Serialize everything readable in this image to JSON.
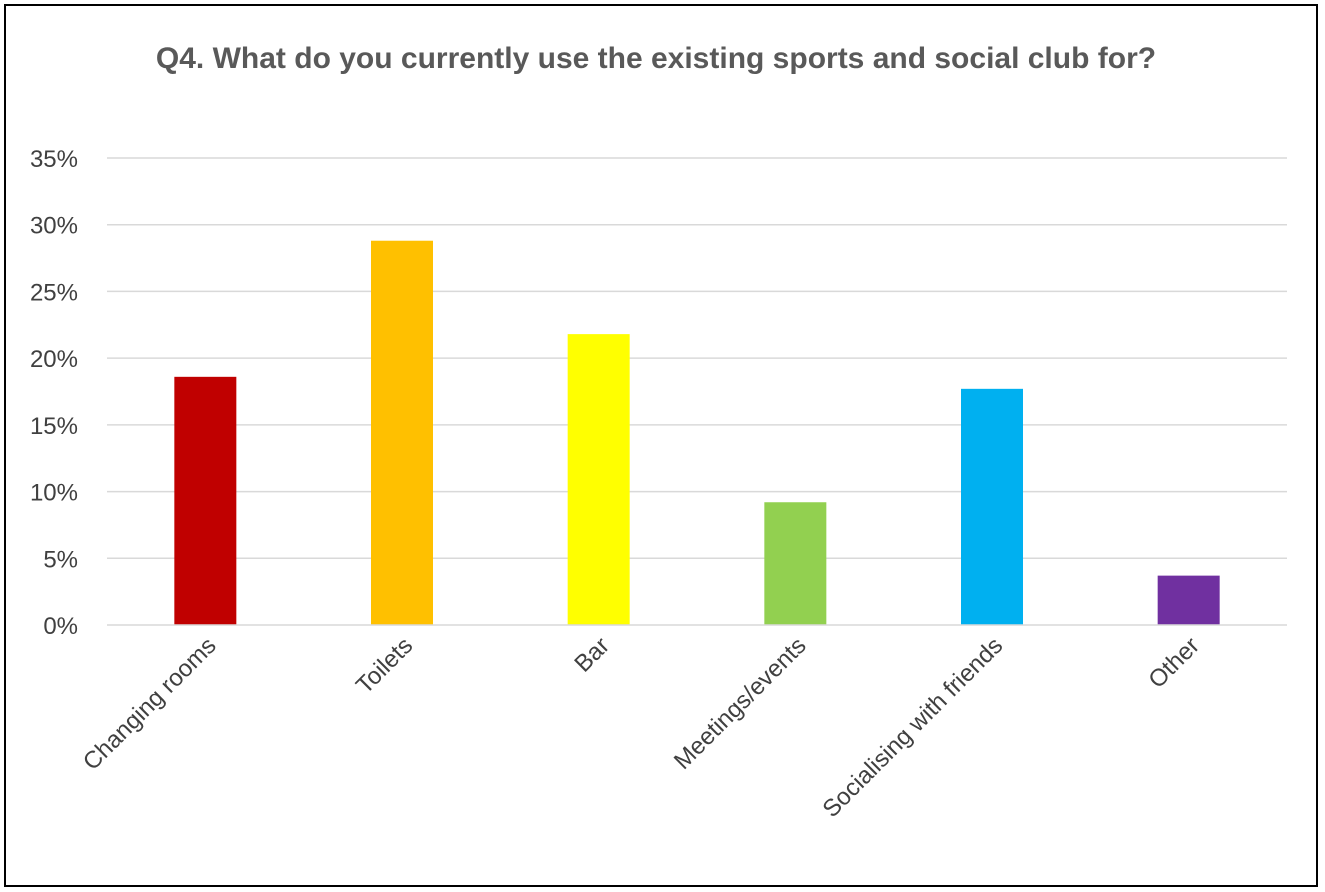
{
  "chart_data": {
    "type": "bar",
    "title": "Q4. What do you currently use the existing sports and social club for?",
    "categories": [
      "Changing rooms",
      "Toilets",
      "Bar",
      "Meetings/events",
      "Socialising with friends",
      "Other"
    ],
    "values": [
      18.6,
      28.8,
      21.8,
      9.2,
      17.7,
      3.7
    ],
    "colors": [
      "#C00000",
      "#FFC000",
      "#FFFF00",
      "#92D050",
      "#00B0F0",
      "#7030A0"
    ],
    "yticks": [
      "0%",
      "5%",
      "10%",
      "15%",
      "20%",
      "25%",
      "30%",
      "35%"
    ],
    "ylim": [
      0,
      35
    ],
    "grid": true,
    "legend": "none"
  }
}
